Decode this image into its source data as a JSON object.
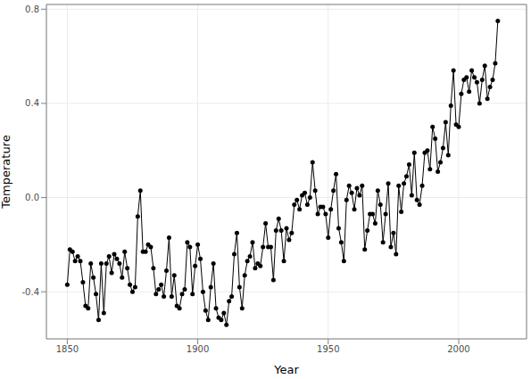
{
  "chart_data": {
    "type": "line",
    "xlabel": "Year",
    "ylabel": "Temperature",
    "x": [
      1850,
      1851,
      1852,
      1853,
      1854,
      1855,
      1856,
      1857,
      1858,
      1859,
      1860,
      1861,
      1862,
      1863,
      1864,
      1865,
      1866,
      1867,
      1868,
      1869,
      1870,
      1871,
      1872,
      1873,
      1874,
      1875,
      1876,
      1877,
      1878,
      1879,
      1880,
      1881,
      1882,
      1883,
      1884,
      1885,
      1886,
      1887,
      1888,
      1889,
      1890,
      1891,
      1892,
      1893,
      1894,
      1895,
      1896,
      1897,
      1898,
      1899,
      1900,
      1901,
      1902,
      1903,
      1904,
      1905,
      1906,
      1907,
      1908,
      1909,
      1910,
      1911,
      1912,
      1913,
      1914,
      1915,
      1916,
      1917,
      1918,
      1919,
      1920,
      1921,
      1922,
      1923,
      1924,
      1925,
      1926,
      1927,
      1928,
      1929,
      1930,
      1931,
      1932,
      1933,
      1934,
      1935,
      1936,
      1937,
      1938,
      1939,
      1940,
      1941,
      1942,
      1943,
      1944,
      1945,
      1946,
      1947,
      1948,
      1949,
      1950,
      1951,
      1952,
      1953,
      1954,
      1955,
      1956,
      1957,
      1958,
      1959,
      1960,
      1961,
      1962,
      1963,
      1964,
      1965,
      1966,
      1967,
      1968,
      1969,
      1970,
      1971,
      1972,
      1973,
      1974,
      1975,
      1976,
      1977,
      1978,
      1979,
      1980,
      1981,
      1982,
      1983,
      1984,
      1985,
      1986,
      1987,
      1988,
      1989,
      1990,
      1991,
      1992,
      1993,
      1994,
      1995,
      1996,
      1997,
      1998,
      1999,
      2000,
      2001,
      2002,
      2003,
      2004,
      2005,
      2006,
      2007,
      2008,
      2009,
      2010,
      2011,
      2012,
      2013,
      2014,
      2015
    ],
    "values": [
      -0.37,
      -0.22,
      -0.23,
      -0.27,
      -0.25,
      -0.27,
      -0.36,
      -0.46,
      -0.47,
      -0.28,
      -0.34,
      -0.41,
      -0.52,
      -0.28,
      -0.49,
      -0.28,
      -0.25,
      -0.32,
      -0.24,
      -0.26,
      -0.28,
      -0.34,
      -0.23,
      -0.3,
      -0.37,
      -0.4,
      -0.38,
      -0.08,
      0.03,
      -0.23,
      -0.23,
      -0.2,
      -0.21,
      -0.3,
      -0.41,
      -0.39,
      -0.37,
      -0.42,
      -0.31,
      -0.17,
      -0.42,
      -0.33,
      -0.46,
      -0.47,
      -0.41,
      -0.39,
      -0.19,
      -0.21,
      -0.41,
      -0.29,
      -0.2,
      -0.26,
      -0.4,
      -0.48,
      -0.52,
      -0.38,
      -0.28,
      -0.47,
      -0.51,
      -0.52,
      -0.49,
      -0.54,
      -0.44,
      -0.42,
      -0.24,
      -0.15,
      -0.38,
      -0.47,
      -0.33,
      -0.27,
      -0.25,
      -0.19,
      -0.3,
      -0.28,
      -0.29,
      -0.21,
      -0.11,
      -0.21,
      -0.21,
      -0.35,
      -0.14,
      -0.09,
      -0.14,
      -0.27,
      -0.13,
      -0.18,
      -0.15,
      -0.03,
      -0.01,
      -0.05,
      0.01,
      0.02,
      -0.03,
      0.0,
      0.15,
      0.03,
      -0.07,
      -0.04,
      -0.04,
      -0.07,
      -0.17,
      -0.05,
      0.03,
      0.1,
      -0.13,
      -0.19,
      -0.27,
      -0.01,
      0.05,
      0.02,
      -0.05,
      0.04,
      0.01,
      0.05,
      -0.22,
      -0.14,
      -0.07,
      -0.07,
      -0.11,
      0.03,
      -0.03,
      -0.19,
      -0.07,
      0.06,
      -0.21,
      -0.15,
      -0.24,
      0.05,
      -0.06,
      0.06,
      0.09,
      0.14,
      0.01,
      0.19,
      -0.01,
      -0.03,
      0.05,
      0.19,
      0.2,
      0.12,
      0.3,
      0.25,
      0.11,
      0.15,
      0.21,
      0.32,
      0.18,
      0.39,
      0.54,
      0.31,
      0.3,
      0.44,
      0.5,
      0.51,
      0.45,
      0.54,
      0.51,
      0.49,
      0.4,
      0.5,
      0.56,
      0.42,
      0.47,
      0.5,
      0.57,
      0.75
    ],
    "color": "#000000",
    "marker": "circle",
    "xlim": [
      1842,
      2026
    ],
    "xticks": [
      1850,
      1900,
      1950,
      2000
    ],
    "ylim": [
      -0.6,
      0.82
    ],
    "yticks": [
      -0.4,
      {
        "value": 0,
        "label": "0.0"
      },
      0.4,
      0.8
    ],
    "grid": true
  }
}
